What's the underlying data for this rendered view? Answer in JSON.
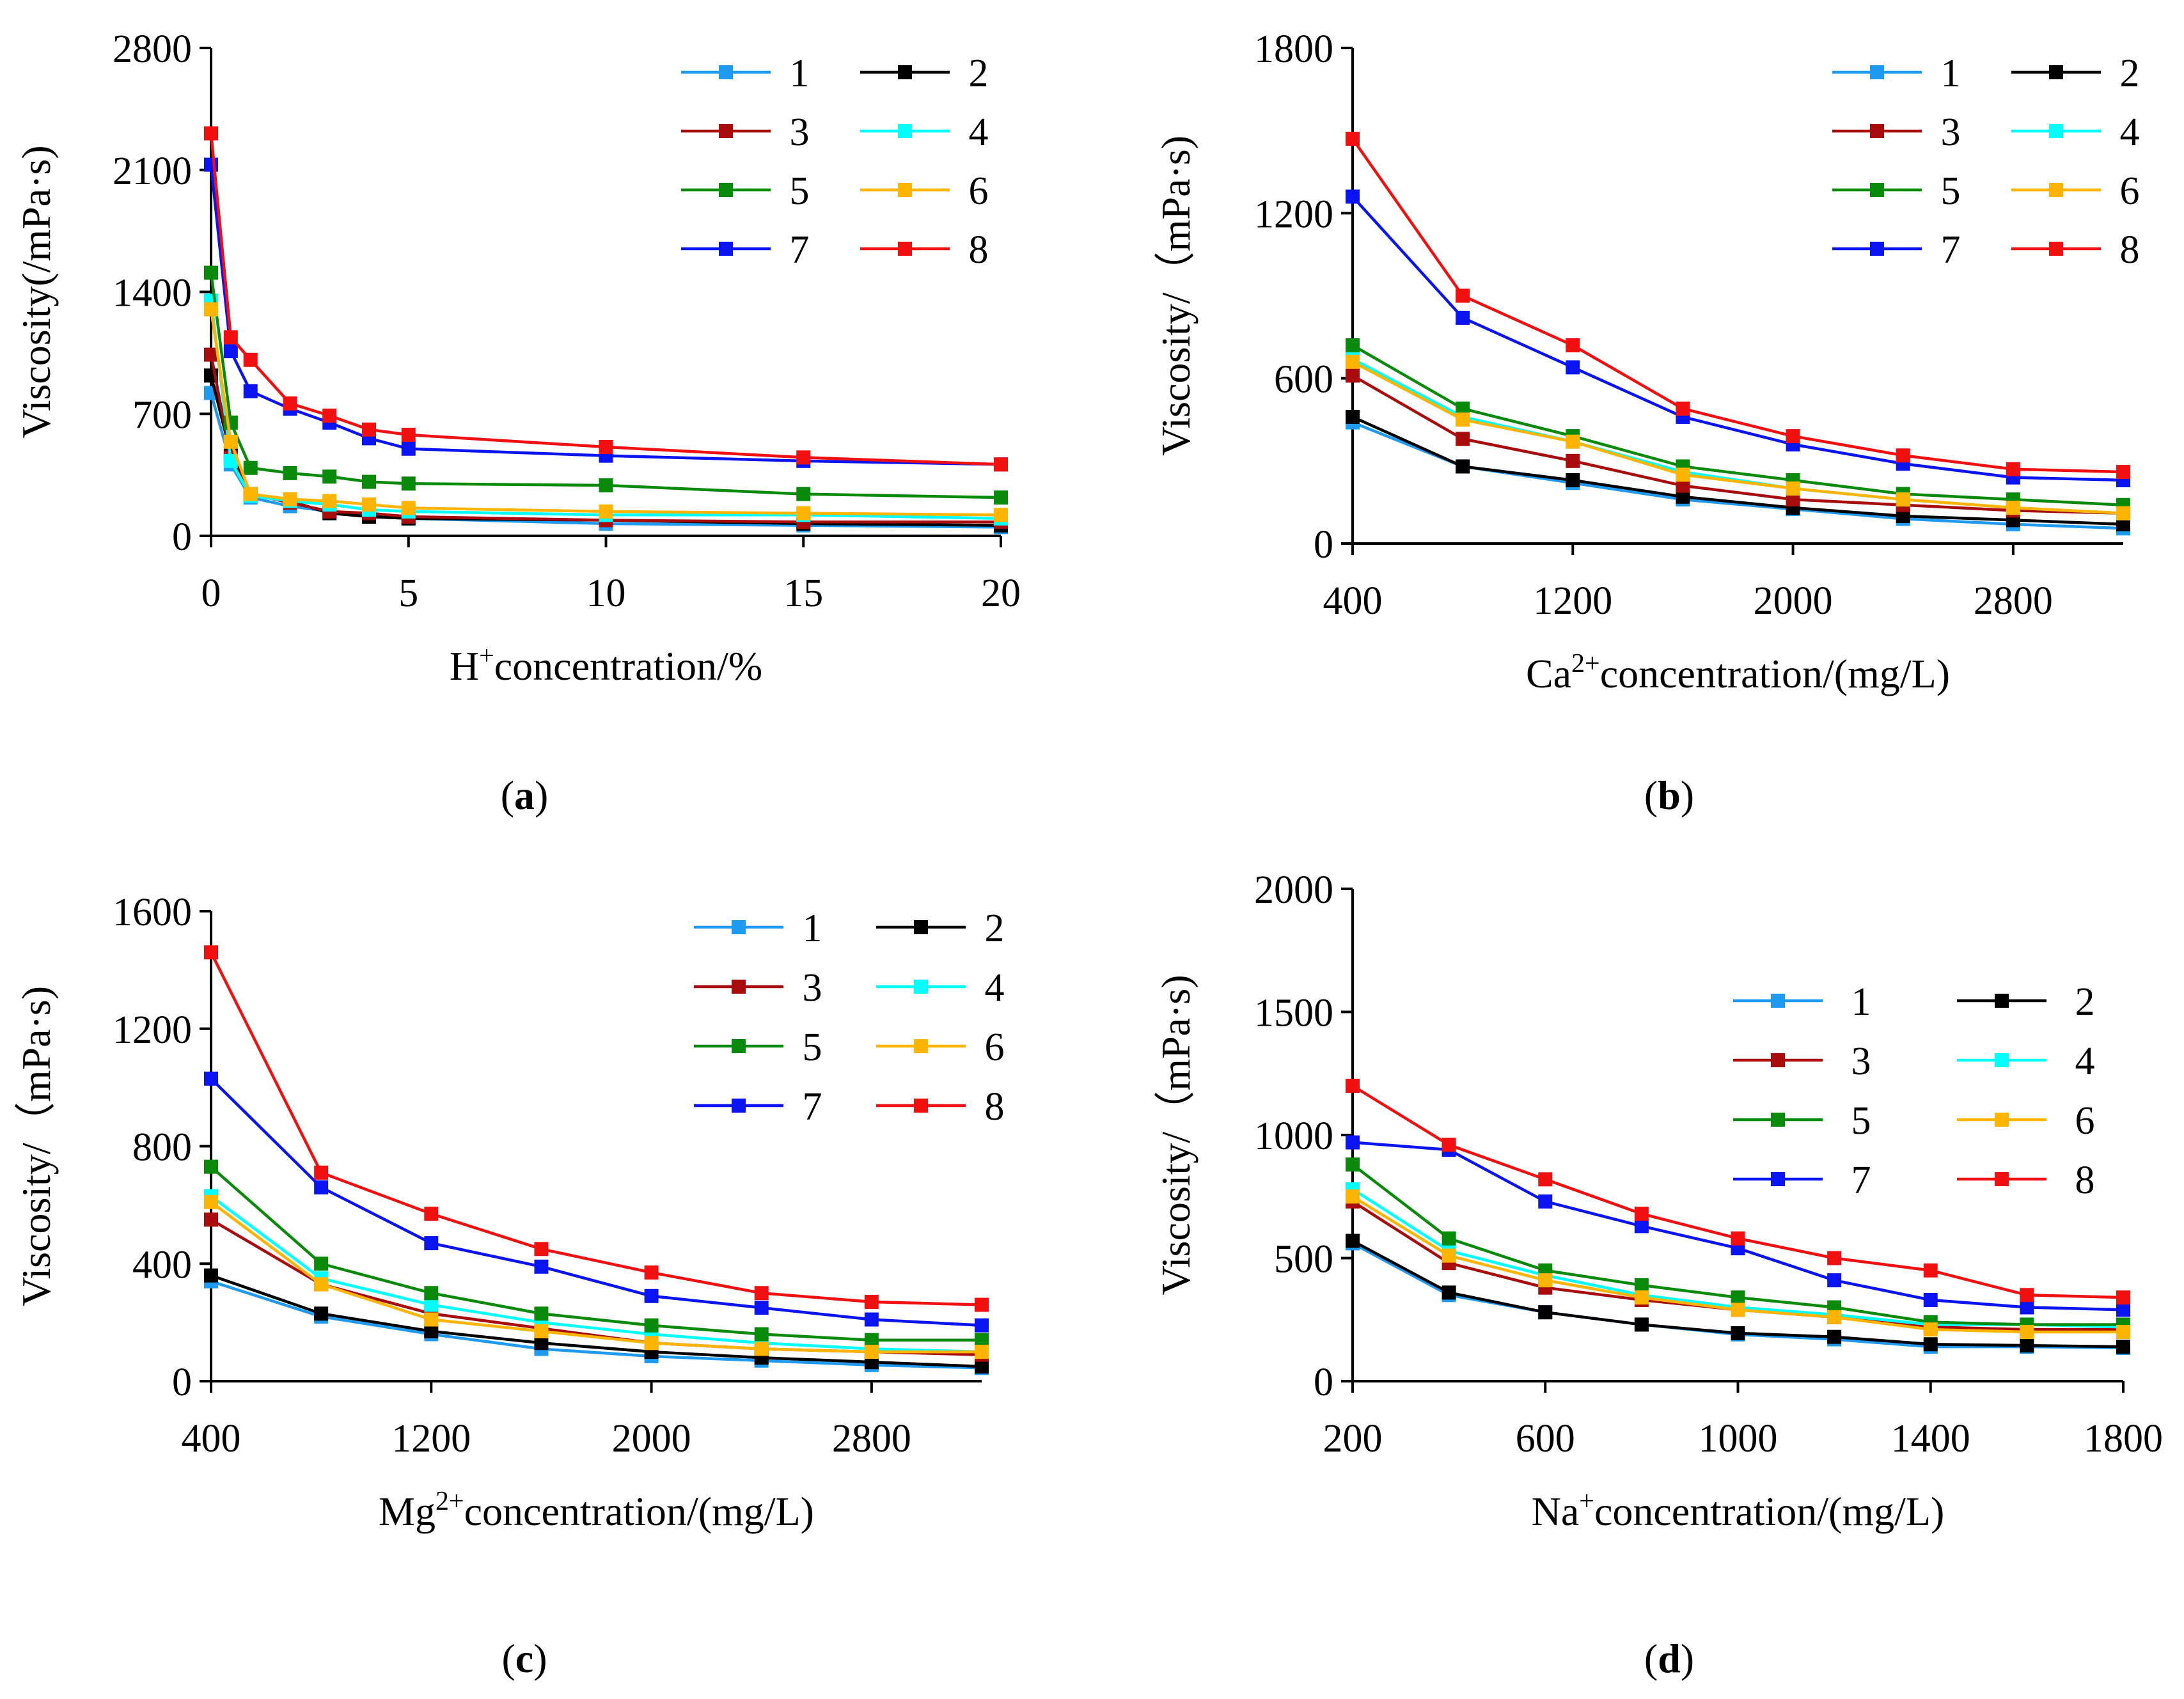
{
  "series_colors": [
    "#1e9bf0",
    "#000000",
    "#a80c0c",
    "#00ffff",
    "#0a8a0a",
    "#ffb400",
    "#0a14f0",
    "#f01010"
  ],
  "chart_data": [
    {
      "id": "a",
      "type": "line",
      "caption_letter": "a",
      "ylabel": "Viscosity(/mPa·s)",
      "xlabel_parts": {
        "pre": "H",
        "sup": "+",
        "post": "concentration/%"
      },
      "x": [
        0,
        0.5,
        1,
        2,
        3,
        4,
        5,
        10,
        15,
        20
      ],
      "xlim": [
        0,
        20
      ],
      "ylim": [
        0,
        2800
      ],
      "xticks": [
        0,
        5,
        10,
        15,
        20
      ],
      "yticks": [
        0,
        700,
        1400,
        2100,
        2800
      ],
      "xtick_labels": [
        "0",
        "5",
        "10",
        "15",
        "20"
      ],
      "ytick_labels": [
        "0",
        "700",
        "1400",
        "2100",
        "2800"
      ],
      "legend_position": "top-right",
      "series": [
        {
          "name": "1",
          "values": [
            820,
            410,
            220,
            170,
            140,
            120,
            100,
            70,
            60,
            50
          ]
        },
        {
          "name": "2",
          "values": [
            920,
            470,
            240,
            200,
            130,
            110,
            100,
            90,
            70,
            60
          ]
        },
        {
          "name": "3",
          "values": [
            1040,
            450,
            240,
            190,
            140,
            130,
            110,
            90,
            80,
            80
          ]
        },
        {
          "name": "4",
          "values": [
            1350,
            430,
            230,
            200,
            180,
            150,
            140,
            120,
            120,
            100
          ]
        },
        {
          "name": "5",
          "values": [
            1510,
            650,
            390,
            360,
            340,
            310,
            300,
            290,
            240,
            220
          ]
        },
        {
          "name": "6",
          "values": [
            1300,
            540,
            240,
            210,
            200,
            180,
            160,
            140,
            130,
            120
          ]
        },
        {
          "name": "7",
          "values": [
            2130,
            1060,
            830,
            730,
            650,
            560,
            500,
            460,
            430,
            410
          ]
        },
        {
          "name": "8",
          "values": [
            2310,
            1140,
            1010,
            760,
            690,
            610,
            580,
            510,
            450,
            410
          ]
        }
      ]
    },
    {
      "id": "b",
      "type": "line",
      "caption_letter": "b",
      "ylabel": "Viscosity/（mPa·s)",
      "xlabel_parts": {
        "pre": "Ca",
        "sup": "2+",
        "post": "concentration/(mg/L)"
      },
      "x": [
        400,
        800,
        1200,
        1600,
        2000,
        2400,
        2800,
        3200
      ],
      "xlim": [
        400,
        3200
      ],
      "ylim": [
        0,
        1800
      ],
      "xticks": [
        400,
        1200,
        2000,
        2800
      ],
      "yticks": [
        0,
        600,
        1200,
        1800
      ],
      "xtick_labels": [
        "400",
        "1200",
        "2000",
        "2800"
      ],
      "ytick_labels": [
        "0",
        "600",
        "1200",
        "1800"
      ],
      "legend_position": "top-right",
      "series": [
        {
          "name": "1",
          "values": [
            440,
            280,
            220,
            160,
            125,
            90,
            70,
            55
          ]
        },
        {
          "name": "2",
          "values": [
            460,
            280,
            230,
            170,
            130,
            100,
            85,
            70
          ]
        },
        {
          "name": "3",
          "values": [
            610,
            380,
            300,
            210,
            160,
            140,
            120,
            110
          ]
        },
        {
          "name": "4",
          "values": [
            670,
            460,
            370,
            260,
            200,
            160,
            130,
            110
          ]
        },
        {
          "name": "5",
          "values": [
            720,
            490,
            390,
            280,
            230,
            180,
            160,
            140
          ]
        },
        {
          "name": "6",
          "values": [
            660,
            450,
            370,
            250,
            200,
            160,
            130,
            110
          ]
        },
        {
          "name": "7",
          "values": [
            1260,
            820,
            640,
            460,
            360,
            290,
            240,
            230
          ]
        },
        {
          "name": "8",
          "values": [
            1470,
            900,
            720,
            490,
            390,
            320,
            270,
            260
          ]
        }
      ]
    },
    {
      "id": "c",
      "type": "line",
      "caption_letter": "c",
      "ylabel": "Viscosity/（mPa·s)",
      "xlabel_parts": {
        "pre": "Mg",
        "sup": "2+",
        "post": "concentration/(mg/L)"
      },
      "x": [
        400,
        800,
        1200,
        1600,
        2000,
        2400,
        2800,
        3200
      ],
      "xlim": [
        400,
        3200
      ],
      "ylim": [
        0,
        1600
      ],
      "xticks": [
        400,
        1200,
        2000,
        2800
      ],
      "yticks": [
        0,
        400,
        800,
        1200,
        1600
      ],
      "xtick_labels": [
        "400",
        "1200",
        "2000",
        "2800"
      ],
      "ytick_labels": [
        "0",
        "400",
        "800",
        "1200",
        "1600"
      ],
      "legend_position": "top-right",
      "series": [
        {
          "name": "1",
          "values": [
            340,
            220,
            160,
            110,
            85,
            70,
            55,
            45
          ]
        },
        {
          "name": "2",
          "values": [
            360,
            230,
            170,
            130,
            100,
            80,
            65,
            50
          ]
        },
        {
          "name": "3",
          "values": [
            550,
            330,
            230,
            180,
            130,
            110,
            100,
            90
          ]
        },
        {
          "name": "4",
          "values": [
            630,
            350,
            260,
            200,
            160,
            130,
            110,
            100
          ]
        },
        {
          "name": "5",
          "values": [
            730,
            400,
            300,
            230,
            190,
            160,
            140,
            140
          ]
        },
        {
          "name": "6",
          "values": [
            610,
            330,
            210,
            170,
            130,
            110,
            100,
            100
          ]
        },
        {
          "name": "7",
          "values": [
            1030,
            660,
            470,
            390,
            290,
            250,
            210,
            190
          ]
        },
        {
          "name": "8",
          "values": [
            1460,
            710,
            570,
            450,
            370,
            300,
            270,
            260
          ]
        }
      ]
    },
    {
      "id": "d",
      "type": "line",
      "caption_letter": "d",
      "ylabel": "Viscosity/（mPa·s)",
      "xlabel_parts": {
        "pre": "Na",
        "sup": "+",
        "post": "concentration/(mg/L)"
      },
      "x": [
        200,
        400,
        600,
        800,
        1000,
        1200,
        1400,
        1600,
        1800
      ],
      "xlim": [
        200,
        1800
      ],
      "ylim": [
        0,
        2000
      ],
      "xticks": [
        200,
        600,
        1000,
        1400,
        1800
      ],
      "yticks": [
        0,
        500,
        1000,
        1500,
        2000
      ],
      "xtick_labels": [
        "200",
        "600",
        "1000",
        "1400",
        "1800"
      ],
      "ytick_labels": [
        "0",
        "500",
        "1000",
        "1500",
        "2000"
      ],
      "legend_position": "top-right",
      "series": [
        {
          "name": "1",
          "values": [
            560,
            350,
            280,
            230,
            190,
            170,
            140,
            140,
            135
          ]
        },
        {
          "name": "2",
          "values": [
            570,
            360,
            280,
            230,
            195,
            180,
            150,
            145,
            140
          ]
        },
        {
          "name": "3",
          "values": [
            730,
            480,
            380,
            330,
            290,
            260,
            220,
            210,
            210
          ]
        },
        {
          "name": "4",
          "values": [
            780,
            530,
            430,
            350,
            300,
            270,
            230,
            230,
            220
          ]
        },
        {
          "name": "5",
          "values": [
            880,
            580,
            450,
            390,
            340,
            300,
            240,
            230,
            230
          ]
        },
        {
          "name": "6",
          "values": [
            750,
            510,
            410,
            340,
            290,
            260,
            210,
            200,
            200
          ]
        },
        {
          "name": "7",
          "values": [
            970,
            940,
            730,
            630,
            540,
            410,
            330,
            300,
            290
          ]
        },
        {
          "name": "8",
          "values": [
            1200,
            960,
            820,
            680,
            580,
            500,
            450,
            350,
            340
          ]
        }
      ]
    }
  ]
}
